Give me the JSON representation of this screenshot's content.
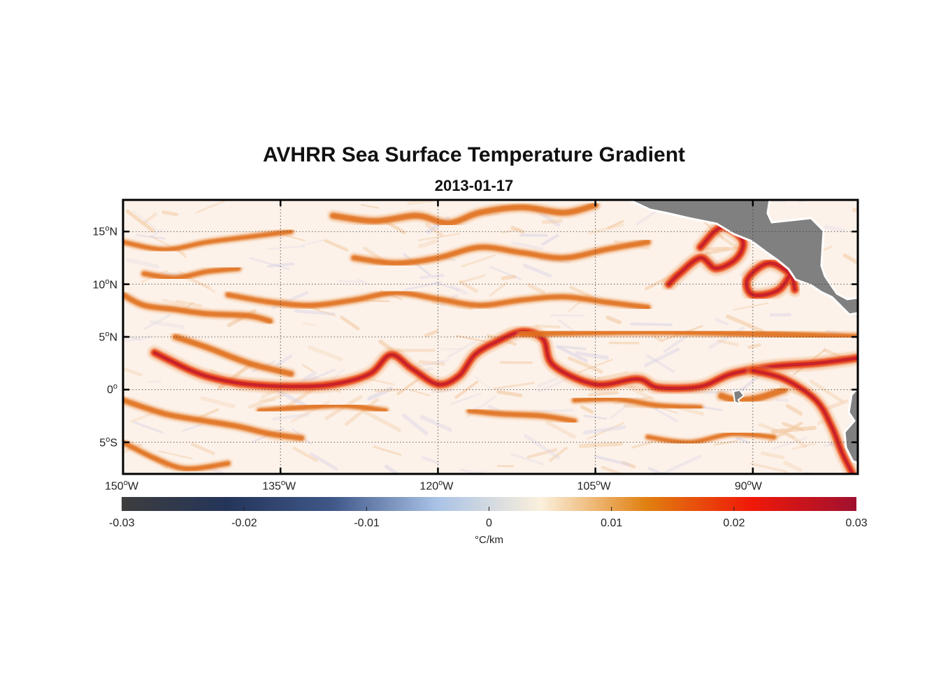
{
  "title": "AVHRR Sea Surface Temperature Gradient",
  "subtitle": "2013-01-17",
  "map": {
    "projection": "equirectangular",
    "lon_range": [
      -150,
      -80
    ],
    "lat_range": [
      -8,
      18
    ],
    "gridlines": "dotted",
    "land_color": "#808080",
    "lon_ticks": [
      {
        "value": -150,
        "deg": "150",
        "hemi": "W"
      },
      {
        "value": -135,
        "deg": "135",
        "hemi": "W"
      },
      {
        "value": -120,
        "deg": "120",
        "hemi": "W"
      },
      {
        "value": -105,
        "deg": "105",
        "hemi": "W"
      },
      {
        "value": -90,
        "deg": "90",
        "hemi": "W"
      }
    ],
    "lat_ticks": [
      {
        "value": 15,
        "deg": "15",
        "hemi": "N"
      },
      {
        "value": 10,
        "deg": "10",
        "hemi": "N"
      },
      {
        "value": 5,
        "deg": "5",
        "hemi": "N"
      },
      {
        "value": 0,
        "deg": "0",
        "hemi": ""
      },
      {
        "value": -5,
        "deg": "5",
        "hemi": "S"
      }
    ],
    "fronts": [
      {
        "name": "equatorial-front",
        "points": [
          [
            -147,
            3.5
          ],
          [
            -143.5,
            1.8
          ],
          [
            -141,
            1
          ],
          [
            -138,
            0.5
          ],
          [
            -134,
            0.3
          ],
          [
            -130,
            0.5
          ],
          [
            -126.5,
            1.5
          ],
          [
            -124.5,
            3.3
          ],
          [
            -122.5,
            2
          ],
          [
            -120,
            0.5
          ],
          [
            -118,
            1.3
          ],
          [
            -116.5,
            3.3
          ],
          [
            -114.5,
            4.5
          ],
          [
            -112,
            5.5
          ],
          [
            -110,
            4.8
          ],
          [
            -109,
            2.3
          ],
          [
            -105,
            0.5
          ],
          [
            -101,
            1
          ],
          [
            -99,
            0.2
          ],
          [
            -95,
            0.3
          ],
          [
            -92,
            1.5
          ],
          [
            -88,
            2.2
          ],
          [
            -84,
            2.5
          ],
          [
            -80,
            3
          ]
        ],
        "weight": 0.9
      },
      {
        "name": "tiw-crest",
        "points": [
          [
            -145,
            5
          ],
          [
            -142,
            4
          ],
          [
            -138,
            2.5
          ],
          [
            -134,
            1.5
          ]
        ],
        "weight": 0.55
      },
      {
        "name": "north-front",
        "points": [
          [
            -112,
            5.3
          ],
          [
            -100,
            5.5
          ],
          [
            -90,
            5.3
          ],
          [
            -80,
            5
          ]
        ],
        "weight": 0.6
      },
      {
        "name": "peru-current",
        "points": [
          [
            -90,
            1.8
          ],
          [
            -87,
            1
          ],
          [
            -84,
            -1
          ],
          [
            -82.5,
            -3.5
          ],
          [
            -81.5,
            -6
          ],
          [
            -80.5,
            -8
          ]
        ],
        "weight": 0.85
      },
      {
        "name": "dome-ring",
        "points": [
          [
            -95,
            13.5
          ],
          [
            -93,
            15.4
          ],
          [
            -91,
            14.2
          ],
          [
            -91.5,
            12.5
          ],
          [
            -93.5,
            11.5
          ],
          [
            -95,
            12.5
          ],
          [
            -97,
            11
          ],
          [
            -98,
            10
          ]
        ],
        "weight": 0.95
      },
      {
        "name": "papagayo-ring",
        "points": [
          [
            -86,
            11.8
          ],
          [
            -87.5,
            9.5
          ],
          [
            -90,
            9
          ],
          [
            -90.5,
            10.5
          ],
          [
            -88.5,
            12
          ],
          [
            -86.5,
            11
          ],
          [
            -86,
            9.5
          ]
        ],
        "weight": 0.95
      },
      {
        "name": "galapagos-plume",
        "points": [
          [
            -93,
            -0.6
          ],
          [
            -91.5,
            -1
          ],
          [
            -89.5,
            -0.8
          ],
          [
            -87,
            0
          ]
        ],
        "weight": 0.7
      },
      {
        "name": "north-band-1",
        "points": [
          [
            -140,
            9
          ],
          [
            -136,
            8.3
          ],
          [
            -132,
            8
          ],
          [
            -128,
            8.5
          ],
          [
            -124,
            9.2
          ],
          [
            -120,
            8.6
          ],
          [
            -116,
            8
          ],
          [
            -112,
            8.5
          ],
          [
            -108,
            8.8
          ],
          [
            -104,
            8.3
          ],
          [
            -100,
            7.8
          ]
        ],
        "weight": 0.45
      },
      {
        "name": "north-band-2",
        "points": [
          [
            -128,
            12.5
          ],
          [
            -124,
            12
          ],
          [
            -120,
            12.5
          ],
          [
            -116,
            13.5
          ],
          [
            -112,
            13
          ],
          [
            -108,
            12.5
          ],
          [
            -104,
            13.3
          ],
          [
            -100,
            14
          ]
        ],
        "weight": 0.5
      },
      {
        "name": "north-band-3",
        "points": [
          [
            -130,
            16.5
          ],
          [
            -126,
            16
          ],
          [
            -122,
            16.5
          ],
          [
            -119,
            15.8
          ],
          [
            -116,
            16.8
          ],
          [
            -112,
            17.3
          ],
          [
            -108,
            16.8
          ],
          [
            -105,
            17.5
          ]
        ],
        "weight": 0.6
      },
      {
        "name": "west-band-1",
        "points": [
          [
            -150,
            9
          ],
          [
            -148,
            8
          ],
          [
            -145,
            7.6
          ],
          [
            -142,
            7.2
          ],
          [
            -138,
            7
          ],
          [
            -136,
            6.5
          ]
        ],
        "weight": 0.5
      },
      {
        "name": "west-band-2",
        "points": [
          [
            -148,
            11
          ],
          [
            -145,
            10.6
          ],
          [
            -142,
            11.2
          ],
          [
            -139,
            11.5
          ]
        ],
        "weight": 0.4
      },
      {
        "name": "northwest-band",
        "points": [
          [
            -150,
            14
          ],
          [
            -146,
            13.3
          ],
          [
            -142,
            14
          ],
          [
            -138,
            14.5
          ],
          [
            -134,
            15
          ]
        ],
        "weight": 0.35
      },
      {
        "name": "south-band-1",
        "points": [
          [
            -150,
            -1
          ],
          [
            -146,
            -2.3
          ],
          [
            -142,
            -3
          ],
          [
            -139,
            -3.5
          ],
          [
            -136,
            -4.2
          ],
          [
            -133,
            -4.6
          ]
        ],
        "weight": 0.5
      },
      {
        "name": "south-band-2",
        "points": [
          [
            -137,
            -2
          ],
          [
            -133,
            -1.7
          ],
          [
            -129,
            -1.5
          ],
          [
            -125,
            -2
          ]
        ],
        "weight": 0.4
      },
      {
        "name": "south-band-3",
        "points": [
          [
            -117,
            -2
          ],
          [
            -114,
            -2.3
          ],
          [
            -110,
            -2.5
          ],
          [
            -107,
            -3
          ]
        ],
        "weight": 0.45
      },
      {
        "name": "south-band-4",
        "points": [
          [
            -107,
            -1
          ],
          [
            -103,
            -0.9
          ],
          [
            -99,
            -1.5
          ],
          [
            -95,
            -1.7
          ]
        ],
        "weight": 0.35
      },
      {
        "name": "southwest-band",
        "points": [
          [
            -150,
            -5
          ],
          [
            -147,
            -6.5
          ],
          [
            -144,
            -7.5
          ],
          [
            -140,
            -7
          ]
        ],
        "weight": 0.4
      },
      {
        "name": "southeast-band",
        "points": [
          [
            -100,
            -4.5
          ],
          [
            -96,
            -5
          ],
          [
            -92,
            -4.2
          ],
          [
            -88,
            -4.5
          ]
        ],
        "weight": 0.3
      }
    ]
  },
  "colorbar": {
    "stops": [
      "#3d3d3d",
      "#24355a",
      "#3f5788",
      "#a9c2e6",
      "#fbf0dc",
      "#e08010",
      "#f01808",
      "#a01030"
    ],
    "ticks": [
      "-0.03",
      "-0.02",
      "-0.01",
      "0",
      "0.01",
      "0.02",
      "0.03"
    ],
    "units": "°C/km"
  }
}
